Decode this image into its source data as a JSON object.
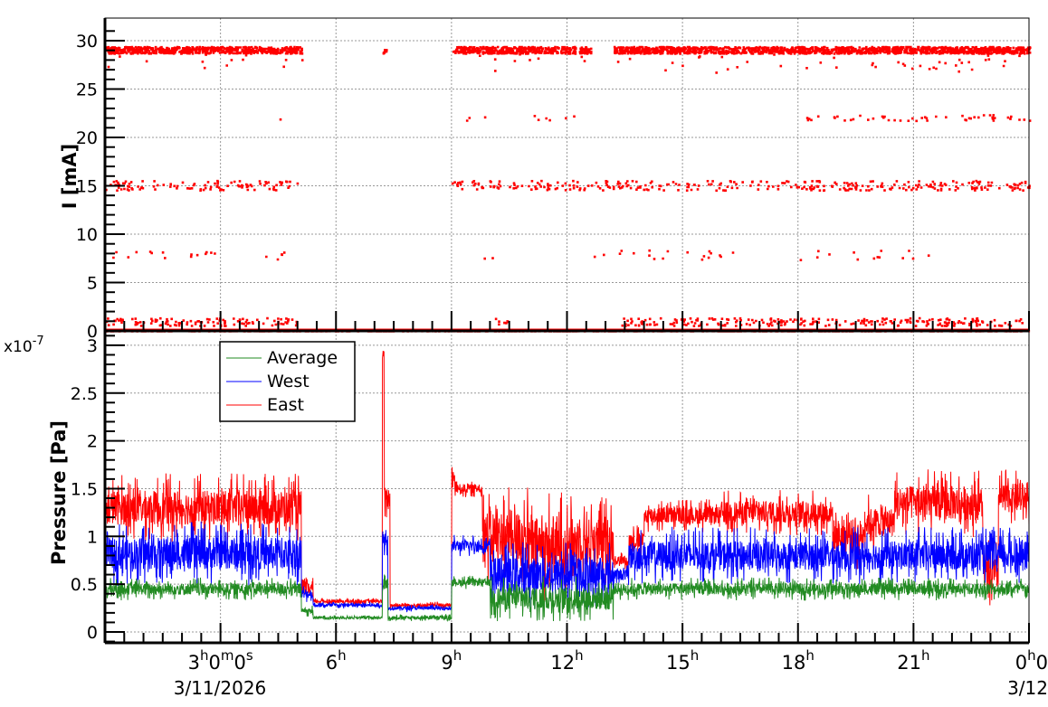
{
  "chart_data": [
    {
      "type": "scatter",
      "title": "",
      "ylabel": "I [mA]",
      "xlabel": "",
      "xlim_hours": [
        0,
        24
      ],
      "ylim": [
        0,
        31
      ],
      "yticks": [
        0,
        5,
        10,
        15,
        20,
        25,
        30
      ],
      "grid": true,
      "color": "#ff0000",
      "clusters": [
        {
          "level": 29,
          "noise": 0.35,
          "count": 2600,
          "ranges": [
            [
              0,
              5.1
            ],
            [
              7.2,
              7.3
            ],
            [
              9,
              12.2
            ],
            [
              12.3,
              12.6
            ],
            [
              13.2,
              24
            ]
          ]
        },
        {
          "level": 22,
          "noise": 0.3,
          "count": 60,
          "ranges": [
            [
              7.2,
              7.3
            ],
            [
              9,
              9.9
            ],
            [
              3,
              3.1
            ],
            [
              4.5,
              4.6
            ],
            [
              11,
              12.5
            ],
            [
              13.5,
              13.6
            ],
            [
              18,
              24
            ]
          ]
        },
        {
          "level": 15,
          "noise": 0.5,
          "count": 420,
          "ranges": [
            [
              0,
              5
            ],
            [
              9,
              12.7
            ],
            [
              12.7,
              13.3
            ],
            [
              13.3,
              24
            ]
          ]
        },
        {
          "level": 7.8,
          "noise": 0.5,
          "count": 55,
          "ranges": [
            [
              0,
              5
            ],
            [
              9.8,
              10.5
            ],
            [
              12,
              16.5
            ],
            [
              18,
              21.5
            ]
          ]
        },
        {
          "level": 0.9,
          "noise": 0.4,
          "count": 360,
          "ranges": [
            [
              0,
              5
            ],
            [
              10,
              10.5
            ],
            [
              13.3,
              24
            ]
          ]
        },
        {
          "level": 0,
          "noise": 0.05,
          "count": 1500,
          "ranges": [
            [
              0,
              24
            ]
          ]
        }
      ]
    },
    {
      "type": "line",
      "ylabel": "Pressure [Pa]",
      "xlabel": "",
      "exponent_label": "x10",
      "exponent": "-7",
      "xlim_hours": [
        0,
        24
      ],
      "ylim": [
        -0.1,
        3.1
      ],
      "yticks": [
        "0",
        "0.5",
        "1",
        "1.5",
        "2",
        "2.5",
        "3"
      ],
      "grid": true,
      "legend": {
        "placement": "top-left",
        "entries": [
          "Average",
          "West",
          "East"
        ]
      },
      "xticks": [
        {
          "h": 3,
          "main": "3",
          "sup1": "h",
          "mid": "0",
          "sup2": "m",
          "mid2": "0",
          "sup3": "s"
        },
        {
          "h": 6,
          "main": "6",
          "sup1": "h"
        },
        {
          "h": 9,
          "main": "9",
          "sup1": "h"
        },
        {
          "h": 12,
          "main": "12",
          "sup1": "h"
        },
        {
          "h": 15,
          "main": "15",
          "sup1": "h"
        },
        {
          "h": 18,
          "main": "18",
          "sup1": "h"
        },
        {
          "h": 21,
          "main": "21",
          "sup1": "h"
        },
        {
          "h": 24,
          "main": "0",
          "sup1": "h",
          "mid": "0"
        }
      ],
      "date_labels": {
        "start": "3/11/2026",
        "end": "3/12"
      },
      "series": [
        {
          "name": "East",
          "color": "#ff0000",
          "segments": [
            [
              0,
              5.1,
              1.3,
              0.3
            ],
            [
              5.1,
              5.4,
              0.45,
              0.1
            ],
            [
              5.4,
              7.2,
              0.32,
              0.03
            ],
            [
              7.2,
              7.25,
              2.9,
              0.05
            ],
            [
              7.25,
              7.4,
              1.4,
              0.2
            ],
            [
              7.4,
              9,
              0.28,
              0.03
            ],
            [
              9,
              9.1,
              1.6,
              0.2
            ],
            [
              9.1,
              9.8,
              1.5,
              0.08
            ],
            [
              9.8,
              11,
              1.0,
              0.45
            ],
            [
              11,
              12,
              0.9,
              0.5
            ],
            [
              12,
              13.2,
              0.95,
              0.4
            ],
            [
              13.2,
              13.6,
              0.75,
              0.08
            ],
            [
              13.6,
              14,
              0.95,
              0.15
            ],
            [
              14,
              16,
              1.22,
              0.15
            ],
            [
              16,
              18.9,
              1.25,
              0.2
            ],
            [
              18.9,
              19.7,
              1.0,
              0.3
            ],
            [
              19.7,
              20.5,
              1.15,
              0.25
            ],
            [
              20.5,
              22.8,
              1.35,
              0.3
            ],
            [
              22.8,
              23.2,
              0.6,
              0.3
            ],
            [
              23.2,
              24,
              1.4,
              0.25
            ]
          ]
        },
        {
          "name": "West",
          "color": "#0000ff",
          "segments": [
            [
              0,
              5.1,
              0.82,
              0.28
            ],
            [
              5.1,
              5.4,
              0.4,
              0.08
            ],
            [
              5.4,
              7.2,
              0.28,
              0.03
            ],
            [
              7.2,
              7.35,
              0.95,
              0.15
            ],
            [
              7.35,
              9,
              0.25,
              0.03
            ],
            [
              9,
              10,
              0.9,
              0.1
            ],
            [
              10,
              13.2,
              0.6,
              0.3
            ],
            [
              13.2,
              13.6,
              0.6,
              0.1
            ],
            [
              13.6,
              24,
              0.8,
              0.25
            ]
          ]
        },
        {
          "name": "Average",
          "color": "#228b22",
          "segments": [
            [
              0,
              5.1,
              0.45,
              0.1
            ],
            [
              5.1,
              5.4,
              0.22,
              0.05
            ],
            [
              5.4,
              7.2,
              0.15,
              0.02
            ],
            [
              7.2,
              7.35,
              0.5,
              0.1
            ],
            [
              7.35,
              9,
              0.15,
              0.03
            ],
            [
              9,
              10,
              0.52,
              0.06
            ],
            [
              10,
              13.2,
              0.35,
              0.2
            ],
            [
              13.2,
              24,
              0.45,
              0.1
            ]
          ]
        }
      ]
    }
  ]
}
